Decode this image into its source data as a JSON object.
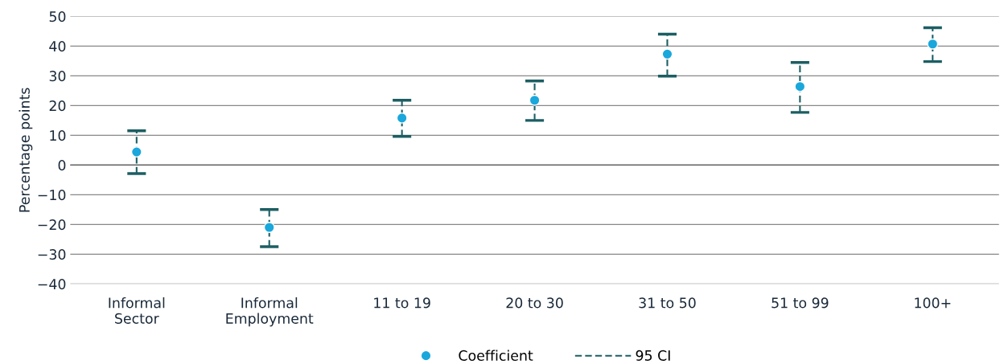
{
  "chart_data": {
    "type": "scatter",
    "ylabel": "Percentage points",
    "categories": [
      "Informal\nSector",
      "Informal\nEmployment",
      "11 to 19",
      "20 to 30",
      "31 to 50",
      "51 to 99",
      "100+"
    ],
    "series": [
      {
        "name": "Coefficient",
        "color": "#1aa7dc",
        "values": [
          4.4,
          -21,
          15.8,
          21.8,
          37.3,
          26.4,
          40.7
        ],
        "errors": [
          [
            -2.9,
            11.5
          ],
          [
            -27.5,
            -15
          ],
          [
            9.6,
            21.8
          ],
          [
            15,
            28.3
          ],
          [
            29.9,
            44
          ],
          [
            17.7,
            34.5
          ],
          [
            34.8,
            46.2
          ]
        ]
      }
    ],
    "annotations": [
      "95 CI"
    ],
    "ylim": [
      -40,
      50
    ],
    "yticks": [
      {
        "value": -40,
        "label": "−40"
      },
      {
        "value": -30,
        "label": "−30"
      },
      {
        "value": -20,
        "label": "−20"
      },
      {
        "value": -10,
        "label": "−10"
      },
      0,
      10,
      20,
      30,
      40,
      50
    ],
    "grid": "y",
    "legend": "bottom",
    "marker": "circle"
  }
}
